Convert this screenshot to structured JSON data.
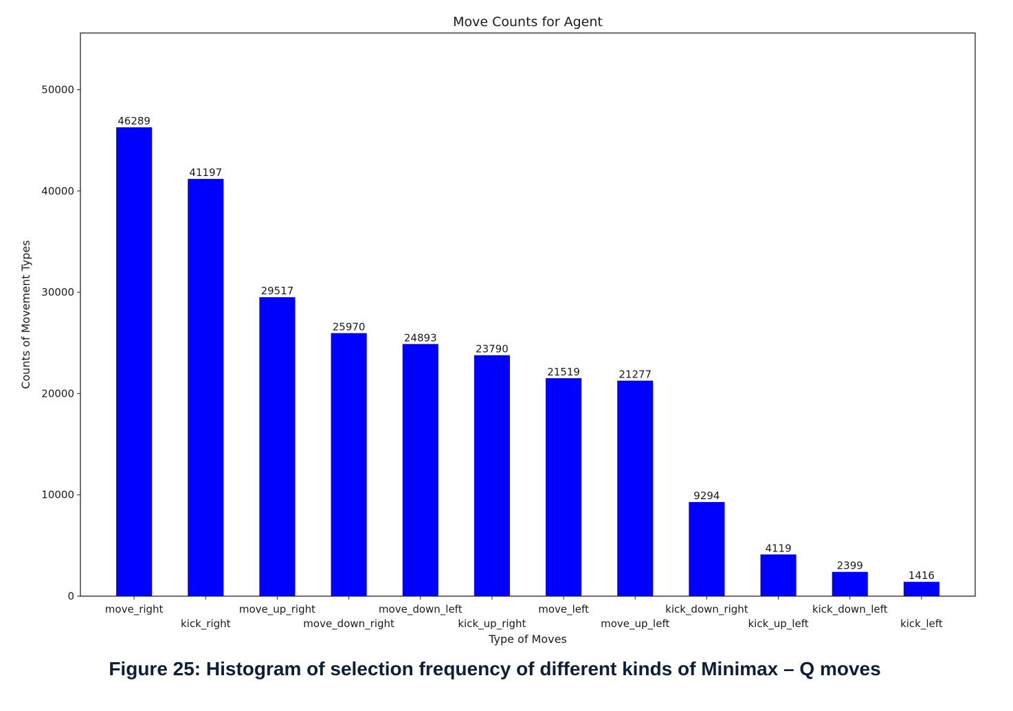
{
  "caption": "Figure 25: Histogram of selection frequency of different kinds of Minimax – Q moves",
  "colors": {
    "bar": "#0000ff",
    "axis": "#222222"
  },
  "chart_data": {
    "type": "bar",
    "title": "Move Counts for Agent",
    "xlabel": "Type of Moves",
    "ylabel": "Counts of Movement Types",
    "categories": [
      "move_right",
      "kick_right",
      "move_up_right",
      "move_down_right",
      "move_down_left",
      "kick_up_right",
      "move_left",
      "move_up_left",
      "kick_down_right",
      "kick_up_left",
      "kick_down_left",
      "kick_left"
    ],
    "values": [
      46289,
      41197,
      29517,
      25970,
      24893,
      23790,
      21519,
      21277,
      9294,
      4119,
      2399,
      1416
    ],
    "yticks": [
      0,
      10000,
      20000,
      30000,
      40000,
      50000
    ],
    "ylim": [
      0,
      55600
    ],
    "grid": false,
    "legend": "none",
    "data_labels": true
  }
}
